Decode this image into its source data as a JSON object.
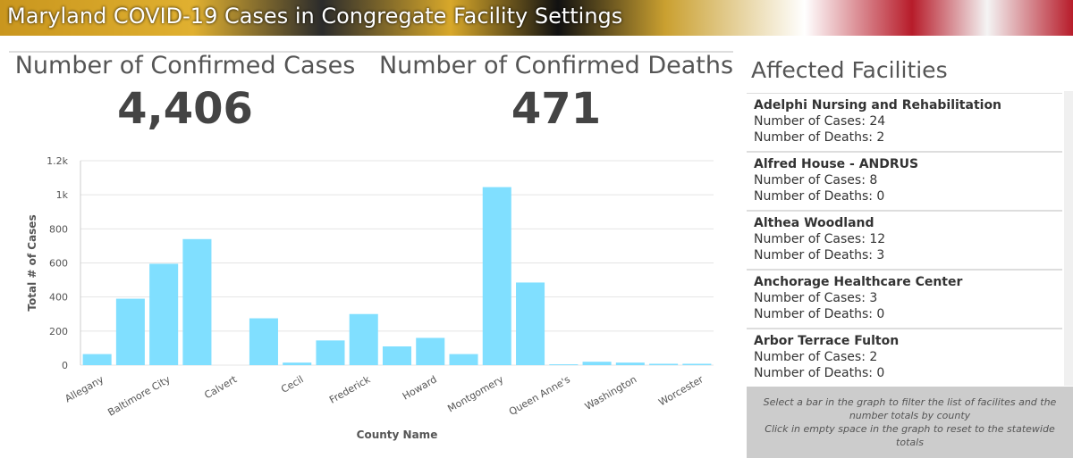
{
  "header": {
    "title": "Maryland COVID-19 Cases in Congregate Facility Settings"
  },
  "kpis": [
    {
      "label": "Number of Confirmed Cases",
      "value": "4,406"
    },
    {
      "label": "Number of Confirmed Deaths",
      "value": "471"
    }
  ],
  "facilities": {
    "title": "Affected Facilities",
    "items": [
      {
        "name": "Adelphi Nursing and Rehabilitation",
        "cases": "Number of Cases: 24",
        "deaths": "Number of Deaths: 2"
      },
      {
        "name": "Alfred House - ANDRUS",
        "cases": "Number of Cases: 8",
        "deaths": "Number of Deaths: 0"
      },
      {
        "name": "Althea Woodland",
        "cases": "Number of Cases: 12",
        "deaths": "Number of Deaths: 3"
      },
      {
        "name": "Anchorage Healthcare Center",
        "cases": "Number of Cases: 3",
        "deaths": "Number of Deaths: 0"
      },
      {
        "name": "Arbor Terrace Fulton",
        "cases": "Number of Cases: 2",
        "deaths": "Number of Deaths: 0"
      }
    ],
    "notes": [
      "Select a bar in the graph to filter the list of facilites and the number totals by county",
      "Click in empty space in the graph to reset to the statewide totals"
    ]
  },
  "chart_data": {
    "type": "bar",
    "categories": [
      "Allegany",
      null,
      "Baltimore City",
      null,
      "Calvert",
      null,
      "Cecil",
      null,
      "Frederick",
      null,
      "Howard",
      null,
      "Montgomery",
      null,
      "Queen Anne's",
      null,
      "Washington",
      null,
      "Worcester"
    ],
    "values": [
      65,
      390,
      595,
      740,
      0,
      275,
      15,
      145,
      300,
      110,
      160,
      65,
      1045,
      485,
      5,
      20,
      15,
      8,
      8
    ],
    "color": "#80dfff",
    "ylim": [
      0,
      1200
    ],
    "yticks": [
      0,
      200,
      400,
      600,
      800,
      {
        "value": 1000,
        "label": "1k"
      },
      {
        "value": 1200,
        "label": "1.2k"
      }
    ],
    "grid": true,
    "xlabel": "County Name",
    "ylabel": "Total # of Cases"
  }
}
